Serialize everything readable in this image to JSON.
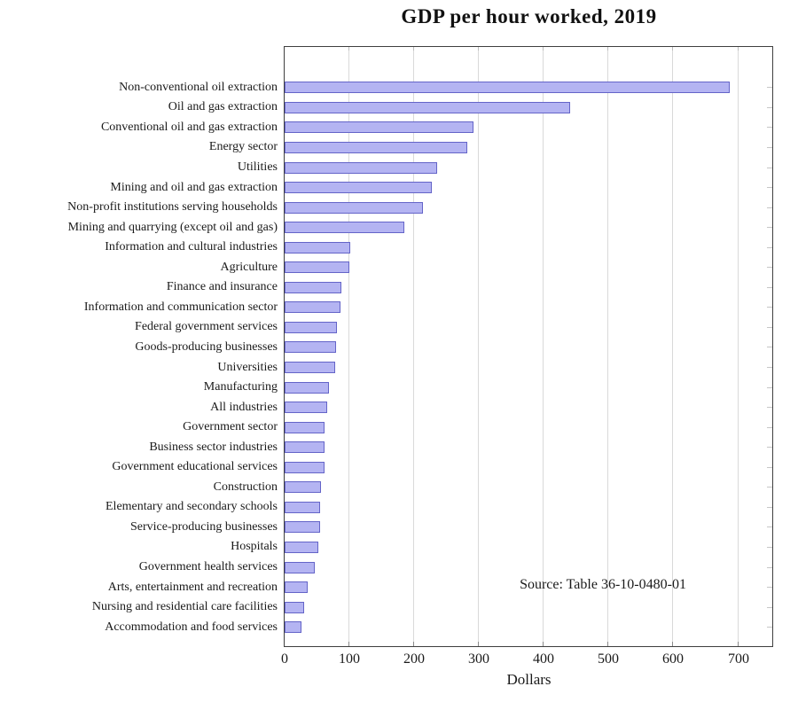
{
  "title": "GDP per hour worked, 2019",
  "xaxis_label": "Dollars",
  "source_note": "Source: Table 36-10-0480-01",
  "colors": {
    "bar_fill": "#b4b4f2",
    "bar_border": "#6464c8",
    "gridline": "#d9d9d9",
    "frame": "#3f3f3f",
    "text": "#1a1a1a"
  },
  "chart_data": {
    "type": "bar",
    "orientation": "horizontal",
    "title": "GDP per hour worked, 2019",
    "xlabel": "Dollars",
    "ylabel": "",
    "xlim": [
      0,
      754
    ],
    "xticks": [
      0,
      100,
      200,
      300,
      400,
      500,
      600,
      700
    ],
    "grid": "vertical",
    "legend": "none",
    "annotation": "Source: Table 36-10-0480-01",
    "categories": [
      "Non-conventional oil extraction",
      "Oil and gas extraction",
      "Conventional oil and gas extraction",
      "Energy sector",
      "Utilities",
      "Mining and oil and gas extraction",
      "Non-profit institutions serving households",
      "Mining and quarrying (except oil and gas)",
      "Information and cultural industries",
      "Agriculture",
      "Finance and insurance",
      "Information and communication sector",
      "Federal government services",
      "Goods-producing businesses",
      "Universities",
      "Manufacturing",
      "All industries",
      "Government sector",
      "Business sector industries",
      "Government educational services",
      "Construction",
      "Elementary and secondary schools",
      "Service-producing businesses",
      "Hospitals",
      "Government health services",
      "Arts, entertainment and recreation",
      "Nursing and residential care facilities",
      "Accommodation and food services"
    ],
    "values": [
      687,
      441,
      292,
      282,
      236,
      227,
      214,
      185,
      101,
      100,
      88,
      86,
      81,
      79,
      78,
      69,
      66,
      61,
      62,
      62,
      56,
      55,
      55,
      52,
      46,
      36,
      30,
      26
    ]
  }
}
